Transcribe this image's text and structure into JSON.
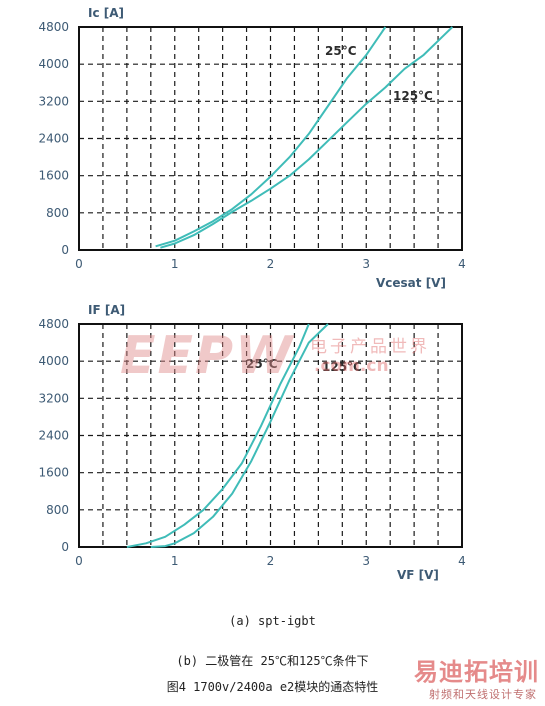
{
  "chart_data": [
    {
      "type": "line",
      "ylabel": "Ic [A]",
      "xlabel": "Vcesat [V]",
      "xlim": [
        0,
        4
      ],
      "ylim": [
        0,
        4800
      ],
      "xticks": [
        "0",
        "1",
        "2",
        "3",
        "4"
      ],
      "yticks": [
        "0",
        "800",
        "1600",
        "2400",
        "3200",
        "4000",
        "4800"
      ],
      "grid": true,
      "series": [
        {
          "name": "25°C",
          "x": [
            0.8,
            1.0,
            1.2,
            1.4,
            1.6,
            1.8,
            2.0,
            2.2,
            2.4,
            2.6,
            2.8,
            3.0,
            3.2
          ],
          "y": [
            80,
            200,
            400,
            620,
            880,
            1200,
            1580,
            2000,
            2500,
            3100,
            3700,
            4200,
            4800
          ]
        },
        {
          "name": "125°C",
          "x": [
            0.85,
            1.0,
            1.2,
            1.4,
            1.6,
            1.8,
            2.0,
            2.2,
            2.4,
            2.6,
            2.8,
            3.0,
            3.2,
            3.4,
            3.6,
            3.8,
            3.9
          ],
          "y": [
            50,
            140,
            320,
            560,
            820,
            1060,
            1320,
            1600,
            1950,
            2350,
            2750,
            3150,
            3500,
            3900,
            4200,
            4600,
            4800
          ]
        }
      ]
    },
    {
      "type": "line",
      "ylabel": "IF [A]",
      "xlabel": "VF [V]",
      "xlim": [
        0,
        4
      ],
      "ylim": [
        0,
        4800
      ],
      "xticks": [
        "0",
        "1",
        "2",
        "3",
        "4"
      ],
      "yticks": [
        "0",
        "800",
        "1600",
        "2400",
        "3200",
        "4000",
        "4800"
      ],
      "grid": true,
      "series": [
        {
          "name": "25°C",
          "x": [
            0.5,
            0.7,
            0.9,
            1.1,
            1.3,
            1.5,
            1.7,
            1.9,
            2.1,
            2.3,
            2.4
          ],
          "y": [
            0,
            80,
            220,
            480,
            800,
            1250,
            1800,
            2600,
            3500,
            4300,
            4800
          ]
        },
        {
          "name": "125°C",
          "x": [
            0.75,
            0.9,
            1.0,
            1.2,
            1.4,
            1.6,
            1.8,
            2.0,
            2.2,
            2.4,
            2.6
          ],
          "y": [
            0,
            20,
            80,
            300,
            650,
            1150,
            1850,
            2700,
            3600,
            4400,
            4800
          ]
        }
      ]
    }
  ],
  "captions": {
    "a": "(a)  spt-igbt",
    "b": "(b)  二极管在 25℃和125℃条件下",
    "fig": "图4  1700v/2400a e2模块的通态特性"
  },
  "watermark": {
    "main": "EEPW",
    "cn": "电子产品世界",
    "url": ".com.cn"
  },
  "logo": {
    "title": "易迪拓培训",
    "subtitle": "射频和天线设计专家"
  },
  "colors": {
    "curve": "#3fbcb8",
    "axis_text": "#3d5a74",
    "grid": "#1a1a1a"
  }
}
